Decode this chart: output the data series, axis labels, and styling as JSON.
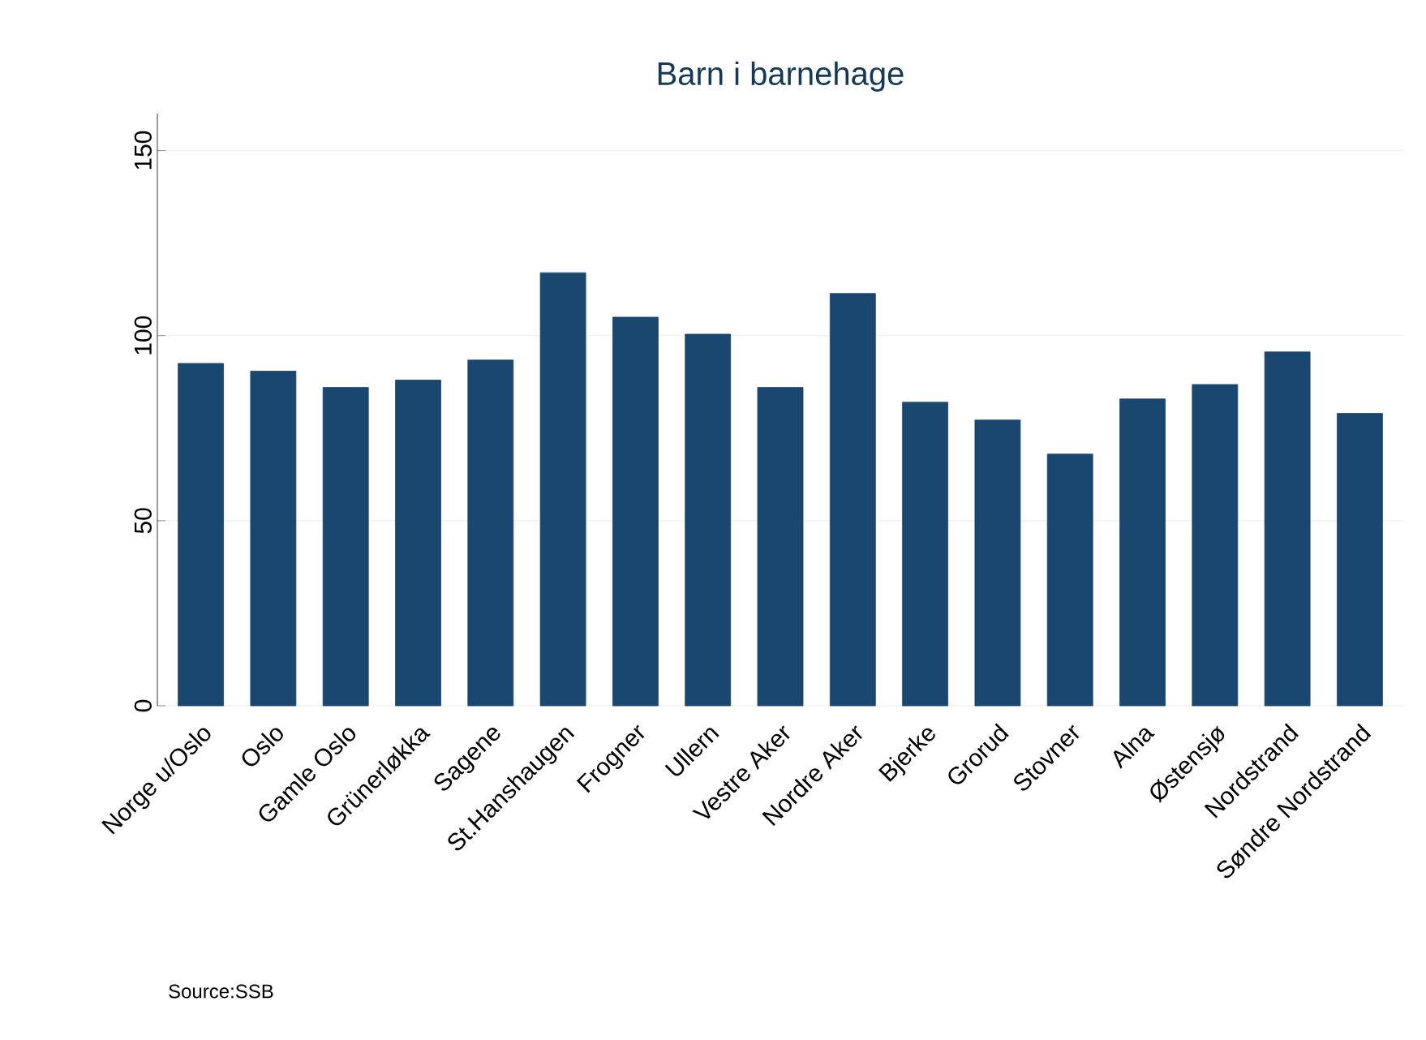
{
  "chart_data": {
    "type": "bar",
    "title": "Barn i barnehage",
    "categories": [
      "Norge u/Oslo",
      "Oslo",
      "Gamle Oslo",
      "Grünerløkka",
      "Sagene",
      "St.Hanshaugen",
      "Frogner",
      "Ullern",
      "Vestre Aker",
      "Nordre Aker",
      "Bjerke",
      "Grorud",
      "Stovner",
      "Alna",
      "Østensjø",
      "Nordstrand",
      "Søndre Nordstrand"
    ],
    "values": [
      92.5,
      90.4,
      86,
      88,
      93.4,
      117,
      105,
      100.4,
      86,
      111.4,
      82,
      77.2,
      68,
      82.9,
      86.8,
      95.6,
      79
    ],
    "color": "#1a476f",
    "ylim": [
      0,
      160
    ],
    "yticks": [
      0,
      50,
      100,
      150
    ],
    "grid": "y",
    "annotations": [
      "Source:SSB"
    ]
  }
}
